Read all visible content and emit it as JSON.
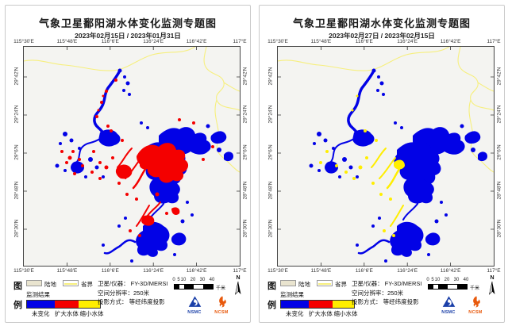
{
  "colors": {
    "water": "#0202e6",
    "expand": "#f40000",
    "shrink": "#ffee00",
    "boundary": "#f6ef7e",
    "land": "#e9e4cf",
    "map_bg": "#f4f4f1"
  },
  "panels": [
    {
      "title": "气象卫星鄱阳湖水体变化监测专题图",
      "dates": "2023年02月15日 / 2023年01月31日",
      "change": "#f40000",
      "show_major": true
    },
    {
      "title": "气象卫星鄱阳湖水体变化监测专题图",
      "dates": "2023年02月27日 / 2023年02月15日",
      "change": "#ffee00",
      "show_major": false
    }
  ],
  "map": {
    "lon_ticks": [
      "115°30'E",
      "115°48'E",
      "116°6'E",
      "116°24'E",
      "116°42'E",
      "117°E"
    ],
    "lat_ticks": [
      "29°42'N",
      "29°24'N",
      "29°6'N",
      "28°48'N",
      "28°30'N"
    ]
  },
  "legend": {
    "fig_top": "图",
    "fig_bottom": "例",
    "land_label": "陆地",
    "boundary_label": "省界",
    "result_label": "监测结果",
    "classes": [
      "未变化",
      "扩大水体",
      "缩小水体"
    ],
    "class_colors": [
      "#0202e6",
      "#f40000",
      "#ffee00"
    ],
    "satellite_line": "卫星/仪器： FY-3D/MERSI",
    "resolution_line": "空间分辨率：250米",
    "projection_line": "投影方式： 等经纬度投影",
    "scalebar_ticks": [
      "0",
      "5",
      "10",
      "20",
      "30",
      "40"
    ],
    "scalebar_unit": "千米",
    "north_label": "N",
    "logo1": "NSMC",
    "logo2": "NCSM"
  }
}
